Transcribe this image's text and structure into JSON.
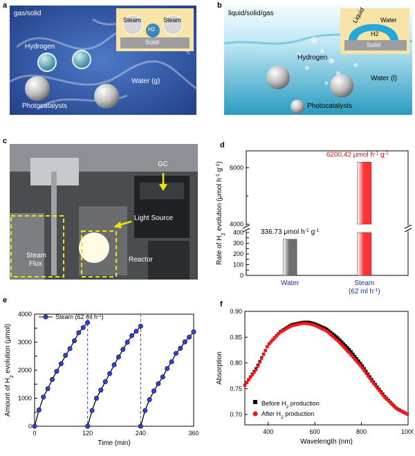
{
  "panels": {
    "a": {
      "letter": "a",
      "phase_label": "gas/solid",
      "inset": {
        "steam_left": "Steam",
        "steam_right": "Steam",
        "h2": "H2",
        "solid": "Solid"
      },
      "labels": {
        "hydrogen": "Hydrogen",
        "water": "Water (g)",
        "photocatalysts": "Photocatalysts"
      },
      "colors": {
        "background": "#2f58a8",
        "inset_bg": "#f7e4a6",
        "solid": "#9e9e9e"
      }
    },
    "b": {
      "letter": "b",
      "phase_label": "liquid/solid/gas",
      "inset": {
        "liquid": "Liquid",
        "water": "Water",
        "h2": "H2",
        "solid": "Solid"
      },
      "labels": {
        "hydrogen": "Hydrogen",
        "water": "Water (l)",
        "photocatalysts": "Photocatalysts"
      },
      "colors": {
        "water_top": "#d9f2fb",
        "water_bottom": "#2a9bc0",
        "droplet": "#25a8d8"
      }
    },
    "c": {
      "letter": "c",
      "labels": {
        "gc": "GC",
        "light_source": "Light Source",
        "steam_flux_1": "Steam",
        "steam_flux_2": "Flux",
        "reactor": "Reactor"
      },
      "colors": {
        "arrow": "#f2e600",
        "dashed_box": "#f2e600"
      }
    },
    "d": {
      "letter": "d"
    },
    "e": {
      "letter": "e"
    },
    "f": {
      "letter": "f"
    }
  },
  "chart_data": [
    {
      "id": "d",
      "type": "bar",
      "categories": [
        "Water",
        "Steam\n(62 ml h-1)"
      ],
      "values": [
        336.73,
        6200.42
      ],
      "annotations": [
        "336.73 μmol h-1 g-1",
        "6200.42 μmol h-1 g-1"
      ],
      "ylabel": "Rate of H2 evolution (μmol h-1 g-1)",
      "axis_break": [
        400,
        4000
      ],
      "lower_ticks": [
        0,
        50,
        100,
        150,
        200,
        250,
        300,
        350,
        400
      ],
      "upper_ticks": [
        4000,
        6000
      ],
      "colors": {
        "water": "#6e6e6e",
        "steam": "#ff3333",
        "category_text": "#1f2ca8",
        "annotation_steam": "#e01010"
      }
    },
    {
      "id": "e",
      "type": "line",
      "series": [
        {
          "name": "Steam (62 ml h-1)",
          "cycles": [
            {
              "x": [
                0,
                10,
                20,
                30,
                40,
                50,
                60,
                70,
                80,
                90,
                100,
                110,
                120
              ],
              "y": [
                0,
                580,
                1040,
                1340,
                1670,
                1960,
                2230,
                2530,
                2770,
                3050,
                3340,
                3520,
                3700
              ]
            },
            {
              "x": [
                120,
                130,
                140,
                150,
                160,
                170,
                180,
                190,
                200,
                210,
                220,
                230,
                240
              ],
              "y": [
                0,
                560,
                1000,
                1290,
                1590,
                1880,
                2190,
                2470,
                2740,
                3000,
                3230,
                3390,
                3570
              ]
            },
            {
              "x": [
                240,
                250,
                260,
                270,
                280,
                290,
                300,
                310,
                320,
                330,
                340,
                350,
                360
              ],
              "y": [
                0,
                560,
                950,
                1260,
                1520,
                1760,
                2060,
                2300,
                2600,
                2780,
                3010,
                3180,
                3370
              ]
            }
          ]
        }
      ],
      "xlabel": "Time (min)",
      "ylabel": "Amount of H2 evolution (μmol)",
      "xlim": [
        0,
        360
      ],
      "ylim": [
        0,
        4000
      ],
      "xticks": [
        0,
        120,
        240,
        360
      ],
      "yticks": [
        0,
        500,
        1000,
        1500,
        2000,
        2500,
        3000,
        3500,
        4000
      ],
      "ytick_labels": [
        0,
        1000,
        2000,
        3000,
        4000
      ],
      "vlines": [
        120,
        240
      ],
      "legend": "top-left",
      "colors": {
        "marker": "#2f3fe0",
        "line": "#000000",
        "vline": "#3f3fd0"
      }
    },
    {
      "id": "f",
      "type": "scatter",
      "series": [
        {
          "name": "Before H2 production",
          "marker": "square",
          "color": "#000000"
        },
        {
          "name": "After H2 production",
          "marker": "circle",
          "color": "#ff1414"
        }
      ],
      "curve_before": {
        "x": [
          300,
          350,
          400,
          450,
          500,
          550,
          575,
          600,
          650,
          700,
          750,
          800,
          850,
          900,
          950,
          1000
        ],
        "y": [
          0.757,
          0.79,
          0.835,
          0.86,
          0.874,
          0.879,
          0.879,
          0.876,
          0.866,
          0.848,
          0.825,
          0.797,
          0.764,
          0.735,
          0.712,
          0.7
        ]
      },
      "curve_after": {
        "x": [
          300,
          350,
          400,
          450,
          500,
          550,
          575,
          600,
          650,
          700,
          750,
          800,
          850,
          900,
          950,
          1000
        ],
        "y": [
          0.757,
          0.788,
          0.835,
          0.859,
          0.872,
          0.877,
          0.876,
          0.873,
          0.862,
          0.842,
          0.818,
          0.792,
          0.761,
          0.733,
          0.711,
          0.7
        ]
      },
      "xlabel": "Wavelength (nm)",
      "ylabel": "Absorption",
      "xlim": [
        300,
        1000
      ],
      "ylim": [
        0.68,
        0.9
      ],
      "xticks": [
        400,
        600,
        800,
        1000
      ],
      "yticks": [
        0.7,
        0.75,
        0.8,
        0.85,
        0.9
      ],
      "legend": "bottom-left"
    }
  ]
}
